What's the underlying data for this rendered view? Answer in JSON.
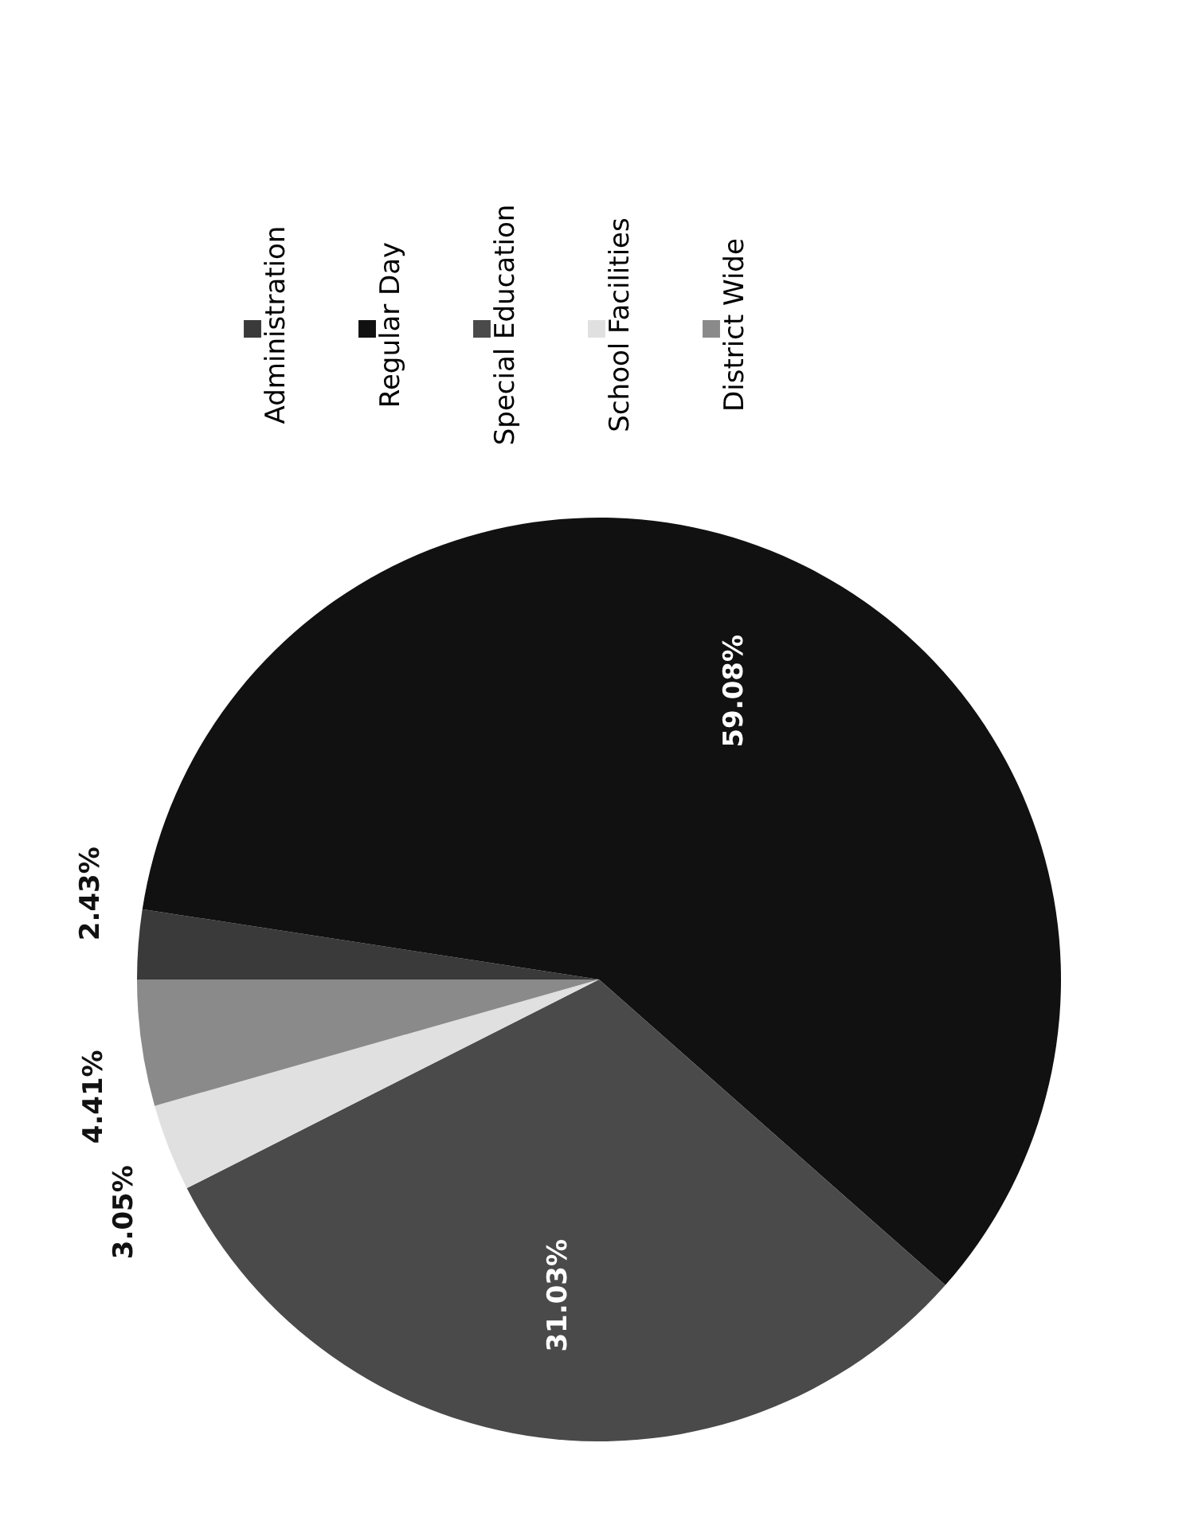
{
  "chart_data": {
    "type": "pie",
    "categories": [
      "Administration",
      "Regular Day",
      "Special Education",
      "School Facilities",
      "District Wide"
    ],
    "values": [
      2.43,
      59.08,
      31.03,
      3.05,
      4.41
    ],
    "value_labels": [
      "2.43%",
      "59.08%",
      "31.03%",
      "3.05%",
      "4.41%"
    ],
    "colors": [
      "#3a3a3a",
      "#111111",
      "#4a4a4a",
      "#e0e0e0",
      "#8a8a8a"
    ],
    "legend": "top"
  }
}
